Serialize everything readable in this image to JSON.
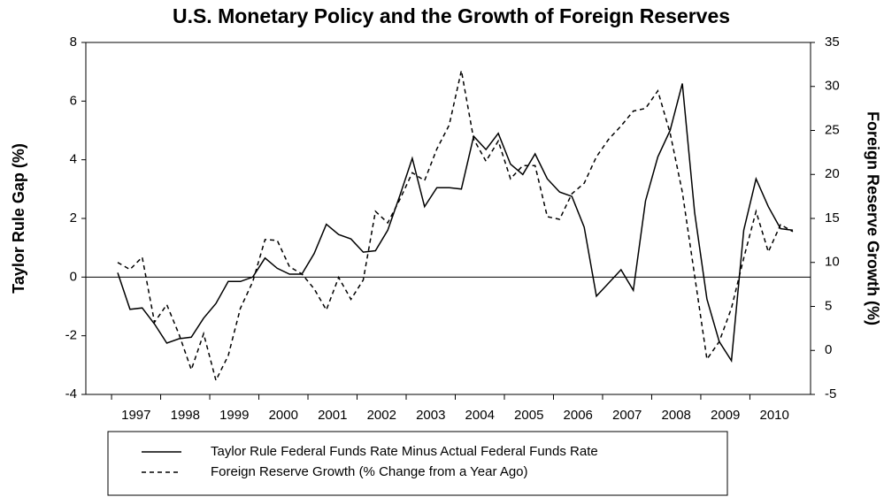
{
  "chart_data": {
    "type": "line",
    "title": "U.S. Monetary Policy and the Growth of Foreign Reserves",
    "ylabel": "Taylor Rule Gap (%)",
    "y2label": "Foreign Reserve Growth (%)",
    "categories": [
      null,
      "1997",
      null,
      null,
      null,
      "1998",
      null,
      null,
      null,
      "1999",
      null,
      null,
      null,
      "2000",
      null,
      null,
      null,
      "2001",
      null,
      null,
      null,
      "2002",
      null,
      null,
      null,
      "2003",
      null,
      null,
      null,
      "2004",
      null,
      null,
      null,
      "2005",
      null,
      null,
      null,
      "2006",
      null,
      null,
      null,
      "2007",
      null,
      null,
      null,
      "2008",
      null,
      null,
      null,
      "2009",
      null,
      null,
      null,
      "2010",
      null,
      null
    ],
    "ylim": [
      -4,
      8
    ],
    "yticks": [
      -4,
      -2,
      0,
      2,
      4,
      6,
      8
    ],
    "y2lim": [
      -5,
      35
    ],
    "y2ticks": [
      -5,
      0,
      5,
      10,
      15,
      20,
      25,
      30,
      35
    ],
    "reference_line": 0,
    "series": [
      {
        "name": "Taylor Rule Federal Funds Rate Minus Actual Federal Funds Rate",
        "color": "#000000",
        "style": "solid",
        "values": [
          0.15,
          -1.1,
          -1.05,
          -1.6,
          -2.25,
          -2.1,
          -2.05,
          -1.4,
          -0.9,
          -0.15,
          -0.15,
          0,
          0.65,
          0.3,
          0.1,
          0.1,
          0.8,
          1.8,
          1.45,
          1.3,
          0.85,
          0.9,
          1.6,
          2.8,
          4.05,
          2.4,
          3.05,
          3.05,
          3.0,
          4.8,
          4.35,
          4.9,
          3.85,
          3.5,
          4.2,
          3.35,
          2.9,
          2.75,
          1.7,
          -0.65,
          -0.2,
          0.25,
          -0.45,
          2.6,
          4.1,
          5.0,
          6.6,
          2.2,
          -0.75,
          -2.2,
          -2.85,
          1.6,
          3.35,
          2.4,
          1.65,
          1.6
        ]
      },
      {
        "name": "Foreign Reserve Growth (% Change from a Year Ago)",
        "color": "#000000",
        "style": "dashed",
        "axis": "y2",
        "values": [
          10,
          9.2,
          10.6,
          3.2,
          5.2,
          1.8,
          -2.2,
          1.9,
          -3.4,
          -0.6,
          4.8,
          7.8,
          12.6,
          12.5,
          9.5,
          8.7,
          7.0,
          4.6,
          8.3,
          5.8,
          8.0,
          15.8,
          14.5,
          17.2,
          20.2,
          19.3,
          22.9,
          25.6,
          31.8,
          24.0,
          21.5,
          23.8,
          19.5,
          21.0,
          21.0,
          15.2,
          14.9,
          17.8,
          19.0,
          22.0,
          24.0,
          25.5,
          27.2,
          27.5,
          29.5,
          24.7,
          18.0,
          8.5,
          -1.0,
          1.0,
          4.8,
          10.5,
          15.8,
          11.2,
          14.3,
          13.5
        ]
      }
    ]
  }
}
